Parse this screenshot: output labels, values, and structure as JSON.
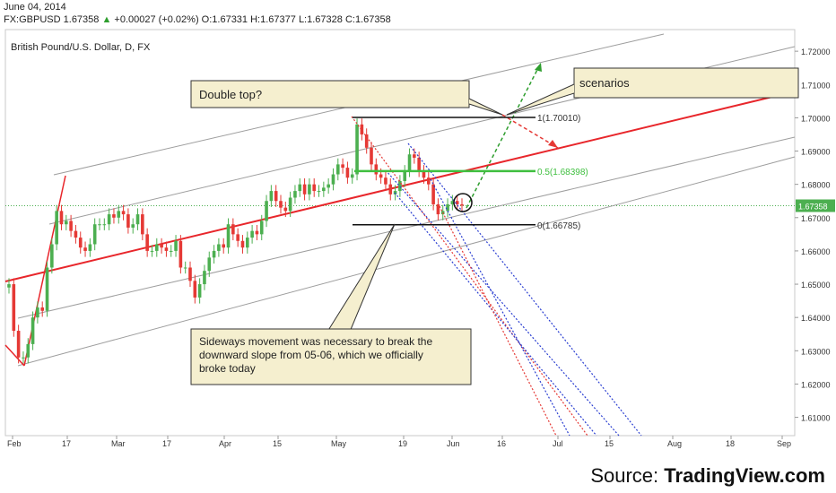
{
  "header": {
    "date": "June 04, 2014",
    "symbol": "FX:GBPUSD",
    "last": "1.67358",
    "change": "+0.00027 (+0.02%)",
    "open": "O:1.67331",
    "high": "H:1.67377",
    "low": "L:1.67328",
    "close": "C:1.67358"
  },
  "colors": {
    "up_candle": "#4caf50",
    "down_candle": "#e53935",
    "main_line": "#e8262b",
    "fib_mid": "#3fbf3f",
    "channel": "#9e9e9e",
    "callout_bg": "#f5efcf",
    "dotted_blue": "#2b3fd1",
    "dotted_red": "#e53935",
    "scenario_up": "#2e9e2e",
    "scenario_down": "#e53935"
  },
  "chart_data": {
    "type": "candlestick",
    "title": "British Pound/U.S. Dollar, D, FX",
    "ylim": [
      1.6045,
      1.7265
    ],
    "y_ticks": [
      "1.72000",
      "1.71000",
      "1.70000",
      "1.69000",
      "1.68000",
      "1.67000",
      "1.66000",
      "1.65000",
      "1.64000",
      "1.63000",
      "1.62000",
      "1.61000"
    ],
    "current_price_label": "1.67358",
    "x_ticks": [
      "Feb",
      "17",
      "Mar",
      "17",
      "Apr",
      "15",
      "May",
      "19",
      "Jun",
      "16",
      "Jul",
      "15",
      "Aug",
      "18",
      "Sep"
    ],
    "fib_levels": [
      {
        "label": "1(1.70010)",
        "value": 1.7001
      },
      {
        "label": "0.5(1.68398)",
        "value": 1.68398
      },
      {
        "label": "0(1.66785)",
        "value": 1.66785
      }
    ],
    "annotations": [
      "Double top?",
      "scenarios",
      "Sideways movement was necessary to break the downward slope from 05-06, which we officially broke today"
    ],
    "source": "TradingView.com",
    "source_prefix": "Source:",
    "candles_close": [
      1.65,
      1.636,
      1.628,
      1.628,
      1.632,
      1.64,
      1.643,
      1.642,
      1.655,
      1.662,
      1.672,
      1.668,
      1.669,
      1.666,
      1.664,
      1.661,
      1.66,
      1.662,
      1.668,
      1.668,
      1.668,
      1.671,
      1.67,
      1.672,
      1.671,
      1.667,
      1.668,
      1.671,
      1.665,
      1.66,
      1.66,
      1.662,
      1.661,
      1.66,
      1.66,
      1.663,
      1.655,
      1.655,
      1.651,
      1.646,
      1.65,
      1.654,
      1.658,
      1.66,
      1.662,
      1.661,
      1.668,
      1.665,
      1.663,
      1.661,
      1.664,
      1.666,
      1.665,
      1.669,
      1.675,
      1.678,
      1.675,
      1.673,
      1.672,
      1.676,
      1.678,
      1.68,
      1.677,
      1.68,
      1.678,
      1.678,
      1.679,
      1.68,
      1.683,
      1.686,
      1.685,
      1.682,
      1.683,
      1.698,
      1.695,
      1.691,
      1.686,
      1.683,
      1.682,
      1.68,
      1.677,
      1.678,
      1.681,
      1.684,
      1.689,
      1.688,
      1.684,
      1.682,
      1.68,
      1.674,
      1.671,
      1.672,
      1.674,
      1.675,
      1.674,
      1.6736
    ]
  }
}
